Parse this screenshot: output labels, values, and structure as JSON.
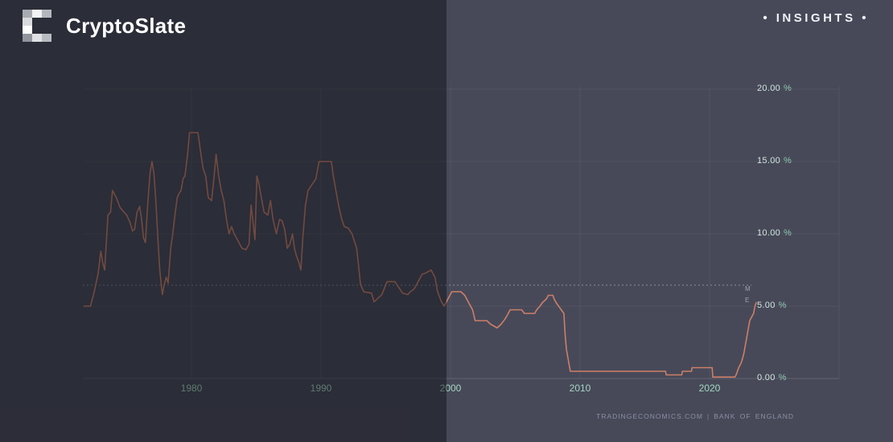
{
  "header": {
    "brand": "CryptoSlate",
    "badge": "• INSIGHTS •"
  },
  "attribution": {
    "source": "TRADINGECONOMICS.COM",
    "separator": "|",
    "provider": "BANK OF ENGLAND"
  },
  "colors": {
    "line": "#cd7f66",
    "background_right": "#474959",
    "background_left_dimmed": "#27282f",
    "tick_number": "#cfe6da",
    "tick_percent": "#8fc9ae",
    "x_tick": "#a4d7bf"
  },
  "chart_data": {
    "type": "line",
    "title": "",
    "xlabel": "",
    "ylabel": "",
    "xlim": [
      1971.6,
      2030
    ],
    "ylim": [
      0,
      20
    ],
    "grid": true,
    "legend_position": "none",
    "x_ticks": [
      {
        "year": 1980,
        "label": "1980"
      },
      {
        "year": 1990,
        "label": "1990"
      },
      {
        "year": 2000,
        "label": "2000"
      },
      {
        "year": 2010,
        "label": "2010"
      },
      {
        "year": 2020,
        "label": "2020"
      }
    ],
    "x_gridline_years": [
      1980,
      1990,
      2000,
      2010,
      2020,
      2030
    ],
    "y_ticks": [
      {
        "value": 0,
        "label": "0.00",
        "suffix": "%"
      },
      {
        "value": 5,
        "label": "5.00",
        "suffix": "%"
      },
      {
        "value": 10,
        "label": "10.00",
        "suffix": "%"
      },
      {
        "value": 15,
        "label": "15.00",
        "suffix": "%"
      },
      {
        "value": 20,
        "label": "20.00",
        "suffix": "%"
      }
    ],
    "reference_line_value": 6.45,
    "edge_markers": [
      "M",
      "E"
    ],
    "series": [
      {
        "name": "Bank of England bank rate (%)",
        "color": "#cd7f66",
        "points": [
          [
            1971.7,
            5.0
          ],
          [
            1972.2,
            5.0
          ],
          [
            1972.5,
            6.0
          ],
          [
            1972.8,
            7.3
          ],
          [
            1973.0,
            8.8
          ],
          [
            1973.15,
            8.0
          ],
          [
            1973.3,
            7.5
          ],
          [
            1973.55,
            11.3
          ],
          [
            1973.75,
            11.5
          ],
          [
            1973.9,
            13.0
          ],
          [
            1974.2,
            12.5
          ],
          [
            1974.5,
            11.8
          ],
          [
            1974.8,
            11.5
          ],
          [
            1975.0,
            11.3
          ],
          [
            1975.25,
            10.8
          ],
          [
            1975.45,
            10.2
          ],
          [
            1975.6,
            10.3
          ],
          [
            1975.8,
            11.5
          ],
          [
            1976.0,
            11.9
          ],
          [
            1976.15,
            11.0
          ],
          [
            1976.3,
            9.7
          ],
          [
            1976.45,
            9.4
          ],
          [
            1976.6,
            11.8
          ],
          [
            1976.8,
            14.2
          ],
          [
            1976.95,
            15.0
          ],
          [
            1977.1,
            14.2
          ],
          [
            1977.25,
            12.3
          ],
          [
            1977.4,
            9.8
          ],
          [
            1977.55,
            7.5
          ],
          [
            1977.75,
            5.8
          ],
          [
            1977.9,
            6.5
          ],
          [
            1978.05,
            7.0
          ],
          [
            1978.2,
            6.6
          ],
          [
            1978.4,
            9.0
          ],
          [
            1978.55,
            10.0
          ],
          [
            1978.75,
            11.5
          ],
          [
            1978.9,
            12.5
          ],
          [
            1979.05,
            12.8
          ],
          [
            1979.2,
            13.0
          ],
          [
            1979.35,
            13.8
          ],
          [
            1979.5,
            14.0
          ],
          [
            1979.7,
            15.5
          ],
          [
            1979.85,
            17.0
          ],
          [
            1980.5,
            17.0
          ],
          [
            1980.65,
            16.0
          ],
          [
            1980.9,
            14.5
          ],
          [
            1981.1,
            14.0
          ],
          [
            1981.3,
            12.5
          ],
          [
            1981.55,
            12.3
          ],
          [
            1981.75,
            14.0
          ],
          [
            1981.9,
            15.5
          ],
          [
            1982.1,
            14.0
          ],
          [
            1982.3,
            13.0
          ],
          [
            1982.5,
            12.3
          ],
          [
            1982.7,
            11.0
          ],
          [
            1982.9,
            10.0
          ],
          [
            1983.1,
            10.5
          ],
          [
            1983.3,
            10.0
          ],
          [
            1983.6,
            9.5
          ],
          [
            1983.9,
            9.0
          ],
          [
            1984.2,
            8.9
          ],
          [
            1984.45,
            9.3
          ],
          [
            1984.6,
            12.0
          ],
          [
            1984.75,
            10.8
          ],
          [
            1984.9,
            9.6
          ],
          [
            1985.05,
            14.0
          ],
          [
            1985.2,
            13.5
          ],
          [
            1985.4,
            12.5
          ],
          [
            1985.6,
            11.5
          ],
          [
            1985.9,
            11.3
          ],
          [
            1986.1,
            12.3
          ],
          [
            1986.3,
            11.0
          ],
          [
            1986.55,
            10.0
          ],
          [
            1986.8,
            11.0
          ],
          [
            1987.0,
            10.9
          ],
          [
            1987.2,
            10.3
          ],
          [
            1987.4,
            9.0
          ],
          [
            1987.6,
            9.3
          ],
          [
            1987.8,
            10.0
          ],
          [
            1987.95,
            9.0
          ],
          [
            1988.1,
            8.5
          ],
          [
            1988.3,
            8.0
          ],
          [
            1988.45,
            7.5
          ],
          [
            1988.6,
            9.8
          ],
          [
            1988.8,
            12.0
          ],
          [
            1989.0,
            13.0
          ],
          [
            1989.6,
            13.8
          ],
          [
            1989.85,
            15.0
          ],
          [
            1990.8,
            15.0
          ],
          [
            1990.95,
            14.0
          ],
          [
            1991.15,
            13.0
          ],
          [
            1991.4,
            11.8
          ],
          [
            1991.6,
            11.0
          ],
          [
            1991.8,
            10.5
          ],
          [
            1992.1,
            10.4
          ],
          [
            1992.4,
            10.0
          ],
          [
            1992.75,
            9.0
          ],
          [
            1992.9,
            7.8
          ],
          [
            1993.05,
            6.5
          ],
          [
            1993.3,
            6.0
          ],
          [
            1993.9,
            5.9
          ],
          [
            1994.1,
            5.3
          ],
          [
            1994.7,
            5.8
          ],
          [
            1995.1,
            6.7
          ],
          [
            1995.7,
            6.7
          ],
          [
            1996.0,
            6.3
          ],
          [
            1996.3,
            5.9
          ],
          [
            1996.7,
            5.8
          ],
          [
            1996.9,
            6.0
          ],
          [
            1997.2,
            6.2
          ],
          [
            1997.5,
            6.7
          ],
          [
            1997.8,
            7.2
          ],
          [
            1998.1,
            7.3
          ],
          [
            1998.5,
            7.5
          ],
          [
            1998.8,
            7.0
          ],
          [
            1999.0,
            6.0
          ],
          [
            1999.3,
            5.3
          ],
          [
            1999.5,
            5.0
          ],
          [
            1999.8,
            5.5
          ],
          [
            2000.1,
            6.0
          ],
          [
            2000.8,
            6.0
          ],
          [
            2001.1,
            5.75
          ],
          [
            2001.4,
            5.25
          ],
          [
            2001.7,
            4.75
          ],
          [
            2001.9,
            4.0
          ],
          [
            2002.8,
            4.0
          ],
          [
            2003.1,
            3.75
          ],
          [
            2003.6,
            3.5
          ],
          [
            2003.9,
            3.75
          ],
          [
            2004.2,
            4.1
          ],
          [
            2004.4,
            4.4
          ],
          [
            2004.6,
            4.75
          ],
          [
            2005.5,
            4.75
          ],
          [
            2005.7,
            4.5
          ],
          [
            2006.5,
            4.5
          ],
          [
            2006.65,
            4.75
          ],
          [
            2006.9,
            5.0
          ],
          [
            2007.1,
            5.25
          ],
          [
            2007.4,
            5.5
          ],
          [
            2007.55,
            5.75
          ],
          [
            2007.9,
            5.75
          ],
          [
            2008.0,
            5.5
          ],
          [
            2008.15,
            5.25
          ],
          [
            2008.35,
            5.0
          ],
          [
            2008.75,
            4.5
          ],
          [
            2008.85,
            3.0
          ],
          [
            2008.95,
            2.0
          ],
          [
            2009.05,
            1.5
          ],
          [
            2009.15,
            1.0
          ],
          [
            2009.25,
            0.5
          ],
          [
            2016.6,
            0.5
          ],
          [
            2016.65,
            0.25
          ],
          [
            2017.85,
            0.25
          ],
          [
            2017.9,
            0.5
          ],
          [
            2018.6,
            0.5
          ],
          [
            2018.65,
            0.75
          ],
          [
            2020.2,
            0.75
          ],
          [
            2020.25,
            0.1
          ],
          [
            2021.95,
            0.1
          ],
          [
            2022.05,
            0.25
          ],
          [
            2022.15,
            0.5
          ],
          [
            2022.25,
            0.75
          ],
          [
            2022.4,
            1.0
          ],
          [
            2022.5,
            1.25
          ],
          [
            2022.65,
            1.75
          ],
          [
            2022.75,
            2.25
          ],
          [
            2022.9,
            3.0
          ],
          [
            2023.0,
            3.5
          ],
          [
            2023.1,
            4.0
          ],
          [
            2023.25,
            4.25
          ],
          [
            2023.4,
            4.5
          ],
          [
            2023.5,
            5.0
          ],
          [
            2023.6,
            5.25
          ]
        ]
      }
    ]
  }
}
